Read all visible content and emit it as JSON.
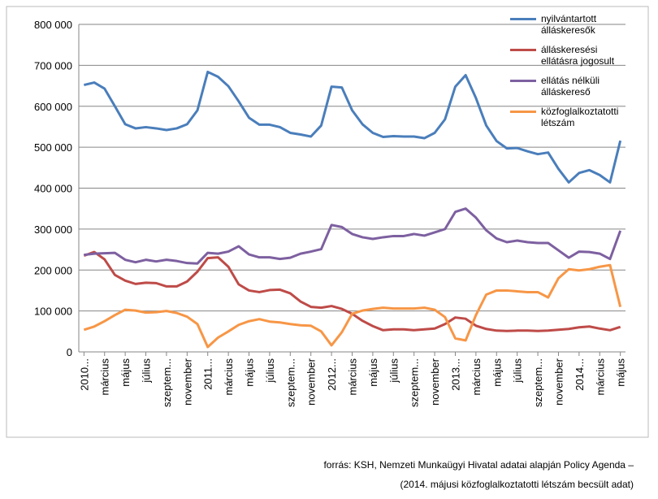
{
  "chart_data": {
    "type": "line",
    "categories": [
      "2010...",
      null,
      "március",
      null,
      "május",
      null,
      "július",
      null,
      "szeptem...",
      null,
      "november",
      null,
      "2011...",
      null,
      "március",
      null,
      "május",
      null,
      "július",
      null,
      "szeptem...",
      null,
      "november",
      null,
      "2012...",
      null,
      "március",
      null,
      "május",
      null,
      "július",
      null,
      "szeptem...",
      null,
      "november",
      null,
      "2013...",
      null,
      "március",
      null,
      "május",
      null,
      "július",
      null,
      "szeptem...",
      null,
      "november",
      null,
      "2014...",
      null,
      "március",
      null,
      "május"
    ],
    "series": [
      {
        "name": "nyilvántartott álláskeresők",
        "color": "#4a7ebb",
        "values": [
          652000,
          658000,
          643000,
          600000,
          556000,
          546000,
          549000,
          546000,
          542000,
          546000,
          556000,
          590000,
          684000,
          672000,
          649000,
          612000,
          572000,
          555000,
          555000,
          549000,
          535000,
          531000,
          526000,
          553000,
          648000,
          646000,
          590000,
          556000,
          535000,
          525000,
          527000,
          526000,
          526000,
          522000,
          535000,
          568000,
          648000,
          676000,
          620000,
          553000,
          515000,
          497000,
          498000,
          490000,
          483000,
          487000,
          447000,
          414000,
          437000,
          444000,
          432000,
          414000,
          516000
        ]
      },
      {
        "name": "álláskeresési ellátásra jogosult",
        "color": "#be4b48",
        "values": [
          235000,
          244000,
          226000,
          188000,
          174000,
          166000,
          169000,
          168000,
          160000,
          160000,
          172000,
          196000,
          229000,
          231000,
          208000,
          165000,
          150000,
          146000,
          151000,
          152000,
          143000,
          123000,
          110000,
          108000,
          112000,
          105000,
          93000,
          76000,
          63000,
          53000,
          55000,
          55000,
          53000,
          55000,
          57000,
          68000,
          84000,
          81000,
          64000,
          56000,
          52000,
          51000,
          52000,
          52000,
          51000,
          52000,
          54000,
          56000,
          60000,
          62000,
          57000,
          53000,
          61000
        ]
      },
      {
        "name": "ellátás nélküli álláskereső",
        "color": "#7d60a0",
        "values": [
          237000,
          240000,
          241000,
          242000,
          225000,
          219000,
          225000,
          221000,
          225000,
          222000,
          217000,
          216000,
          242000,
          240000,
          245000,
          258000,
          238000,
          231000,
          231000,
          227000,
          230000,
          240000,
          245000,
          251000,
          310000,
          305000,
          288000,
          280000,
          276000,
          280000,
          283000,
          283000,
          288000,
          284000,
          292000,
          300000,
          342000,
          350000,
          328000,
          297000,
          277000,
          268000,
          272000,
          268000,
          266000,
          266000,
          248000,
          230000,
          245000,
          244000,
          240000,
          227000,
          296000
        ]
      },
      {
        "name": "közfoglalkoztatotti létszám",
        "color": "#f79646",
        "values": [
          54000,
          62000,
          75000,
          90000,
          103000,
          101000,
          96000,
          97000,
          100000,
          95000,
          86000,
          68000,
          12000,
          35000,
          50000,
          66000,
          75000,
          80000,
          74000,
          72000,
          68000,
          65000,
          64000,
          50000,
          16000,
          48000,
          93000,
          101000,
          105000,
          108000,
          106000,
          106000,
          106000,
          108000,
          103000,
          85000,
          33000,
          28000,
          90000,
          140000,
          150000,
          150000,
          148000,
          146000,
          146000,
          133000,
          180000,
          202000,
          199000,
          202000,
          208000,
          212000,
          110000
        ]
      }
    ],
    "ylim": [
      0,
      800000
    ],
    "yticks": [
      0,
      {
        "value": 100000,
        "label": "100 000"
      },
      {
        "value": 200000,
        "label": "200 000"
      },
      {
        "value": 300000,
        "label": "300 000"
      },
      {
        "value": 400000,
        "label": "400 000"
      },
      {
        "value": 500000,
        "label": "500 000"
      },
      {
        "value": 600000,
        "label": "600 000"
      },
      {
        "value": 700000,
        "label": "700 000"
      },
      {
        "value": 800000,
        "label": "800 000"
      }
    ],
    "grid": true,
    "legend": "upper right",
    "source": [
      "forrás: KSH, Nemzeti Munkaügyi Hivatal adatai alapján Policy Agenda –",
      "(2014. májusi közfoglalkoztatotti létszám becsült adat)"
    ]
  }
}
